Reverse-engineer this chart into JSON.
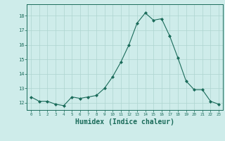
{
  "x": [
    0,
    1,
    2,
    3,
    4,
    5,
    6,
    7,
    8,
    9,
    10,
    11,
    12,
    13,
    14,
    15,
    16,
    17,
    18,
    19,
    20,
    21,
    22,
    23
  ],
  "y": [
    12.4,
    12.1,
    12.1,
    11.9,
    11.8,
    12.4,
    12.3,
    12.4,
    12.5,
    13.0,
    13.8,
    14.8,
    16.0,
    17.5,
    18.2,
    17.7,
    17.8,
    16.6,
    15.1,
    13.5,
    12.9,
    12.9,
    12.1,
    11.9
  ],
  "line_color": "#1a6b5a",
  "marker": "D",
  "marker_size": 2.0,
  "bg_color": "#ceecea",
  "grid_color": "#aed4d0",
  "tick_color": "#1a6b5a",
  "xlabel": "Humidex (Indice chaleur)",
  "xlabel_fontsize": 7.0,
  "ylim": [
    11.5,
    18.8
  ],
  "xlim": [
    -0.5,
    23.5
  ]
}
